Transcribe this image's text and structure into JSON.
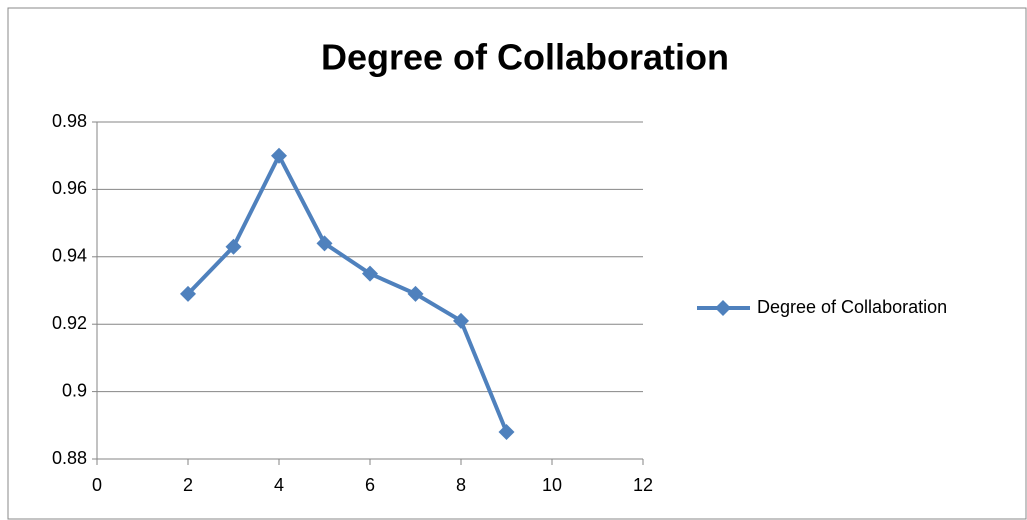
{
  "chart_data": {
    "type": "line",
    "title": "Degree of Collaboration",
    "x": [
      2,
      3,
      4,
      5,
      6,
      7,
      8,
      9
    ],
    "series": [
      {
        "name": "Degree of Collaboration",
        "color": "#4f81bd",
        "values": [
          0.929,
          0.943,
          0.97,
          0.944,
          0.935,
          0.929,
          0.921,
          0.888
        ]
      }
    ],
    "xlim": [
      0,
      12
    ],
    "xticks": [
      0,
      2,
      4,
      6,
      8,
      10,
      12
    ],
    "ylim": [
      0.88,
      0.98
    ],
    "yticks": [
      0.88,
      0.9,
      0.92,
      0.94,
      0.96,
      0.98
    ],
    "grid": true,
    "legend": "right"
  }
}
